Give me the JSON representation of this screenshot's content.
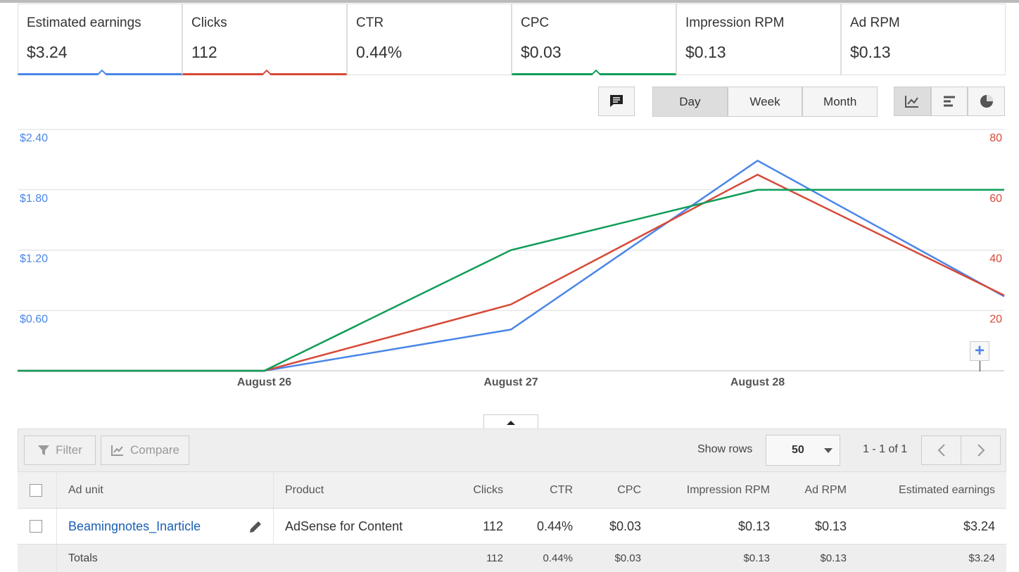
{
  "metrics": [
    {
      "label": "Estimated earnings",
      "value": "$3.24",
      "color": "#4a86e8"
    },
    {
      "label": "Clicks",
      "value": "112",
      "color": "#d64937"
    },
    {
      "label": "CTR",
      "value": "0.44%"
    },
    {
      "label": "CPC",
      "value": "$0.03",
      "color": "#0f9d58"
    },
    {
      "label": "Impression RPM",
      "value": "$0.13"
    },
    {
      "label": "Ad RPM",
      "value": "$0.13"
    }
  ],
  "periods": [
    "Day",
    "Week",
    "Month"
  ],
  "chart_data": {
    "type": "line",
    "categories": [
      null,
      "August 26",
      "August 27",
      "August 28",
      null
    ],
    "series": [
      {
        "name": "Estimated earnings",
        "color": "#4a86e8",
        "values": [
          0,
          0,
          0.41,
          2.09,
          0.74
        ]
      },
      {
        "name": "Clicks",
        "color": "#d64937",
        "axis": "y2",
        "values": [
          0,
          0,
          22,
          65,
          25
        ]
      },
      {
        "name": "CPC",
        "color": "#0f9d58",
        "values": [
          0,
          0,
          1.2,
          1.8,
          1.8
        ]
      }
    ],
    "ylim": [
      0,
      2.4
    ],
    "yticks": [
      {
        "value": 0.6,
        "label": "$0.60"
      },
      {
        "value": 1.2,
        "label": "$1.20"
      },
      {
        "value": 1.8,
        "label": "$1.80"
      },
      {
        "value": 2.4,
        "label": "$2.40"
      }
    ],
    "y2lim": [
      0,
      80
    ],
    "y2ticks": [
      20,
      40,
      60,
      80
    ],
    "grid": true
  },
  "table": {
    "toolbar": {
      "filter": "Filter",
      "compare": "Compare",
      "show_rows": "Show rows",
      "rows_value": "50",
      "pagination": "1 - 1 of 1"
    },
    "header": [
      "Ad unit",
      "Product",
      "Clicks",
      "CTR",
      "CPC",
      "Impression RPM",
      "Ad RPM",
      "Estimated earnings"
    ],
    "rows": [
      [
        "Beamingnotes_Inarticle",
        "AdSense for Content",
        "112",
        "0.44%",
        "$0.03",
        "$0.13",
        "$0.13",
        "$3.24"
      ]
    ],
    "totals": {
      "label": "Totals",
      "cells": [
        "112",
        "0.44%",
        "$0.03",
        "$0.13",
        "$0.13",
        "$3.24"
      ]
    }
  }
}
